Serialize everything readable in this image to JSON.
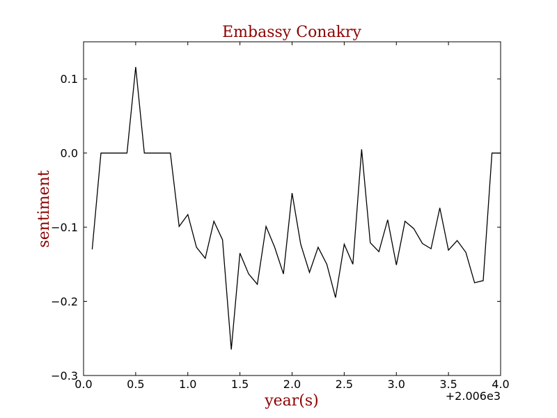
{
  "chart_data": {
    "type": "line",
    "title": "Embassy Conakry",
    "xlabel": "year(s)",
    "ylabel": "sentiment",
    "x_offset_label": "+2.006e3",
    "xlim": [
      0.0,
      4.0
    ],
    "ylim": [
      -0.3,
      0.15
    ],
    "x_ticks": [
      0.0,
      0.5,
      1.0,
      1.5,
      2.0,
      2.5,
      3.0,
      3.5,
      4.0
    ],
    "x_tick_labels": [
      "0.0",
      "0.5",
      "1.0",
      "1.5",
      "2.0",
      "2.5",
      "3.0",
      "3.5",
      "4.0"
    ],
    "y_ticks": [
      -0.3,
      -0.2,
      -0.1,
      0.0,
      0.1
    ],
    "y_tick_labels": [
      "−0.3",
      "−0.2",
      "−0.1",
      "0.0",
      "0.1"
    ],
    "grid": false,
    "series": [
      {
        "color": "#000000",
        "x": [
          0.083,
          0.167,
          0.25,
          0.333,
          0.417,
          0.5,
          0.583,
          0.667,
          0.75,
          0.833,
          0.917,
          1.0,
          1.083,
          1.167,
          1.25,
          1.333,
          1.417,
          1.5,
          1.583,
          1.667,
          1.75,
          1.833,
          1.917,
          2.0,
          2.083,
          2.167,
          2.25,
          2.333,
          2.417,
          2.5,
          2.583,
          2.667,
          2.75,
          2.833,
          2.917,
          3.0,
          3.083,
          3.167,
          3.25,
          3.333,
          3.417,
          3.5,
          3.583,
          3.667,
          3.75,
          3.833,
          3.917,
          4.0
        ],
        "y": [
          -0.13,
          0.0,
          0.0,
          0.0,
          0.0,
          0.116,
          0.0,
          0.0,
          0.0,
          0.0,
          -0.099,
          -0.083,
          -0.127,
          -0.142,
          -0.092,
          -0.117,
          -0.265,
          -0.135,
          -0.163,
          -0.177,
          -0.099,
          -0.127,
          -0.163,
          -0.054,
          -0.123,
          -0.161,
          -0.127,
          -0.15,
          -0.195,
          -0.123,
          -0.15,
          0.005,
          -0.121,
          -0.133,
          -0.09,
          -0.151,
          -0.092,
          -0.102,
          -0.122,
          -0.129,
          -0.074,
          -0.131,
          -0.118,
          -0.134,
          -0.175,
          -0.172,
          0.0,
          0.0
        ]
      }
    ]
  }
}
